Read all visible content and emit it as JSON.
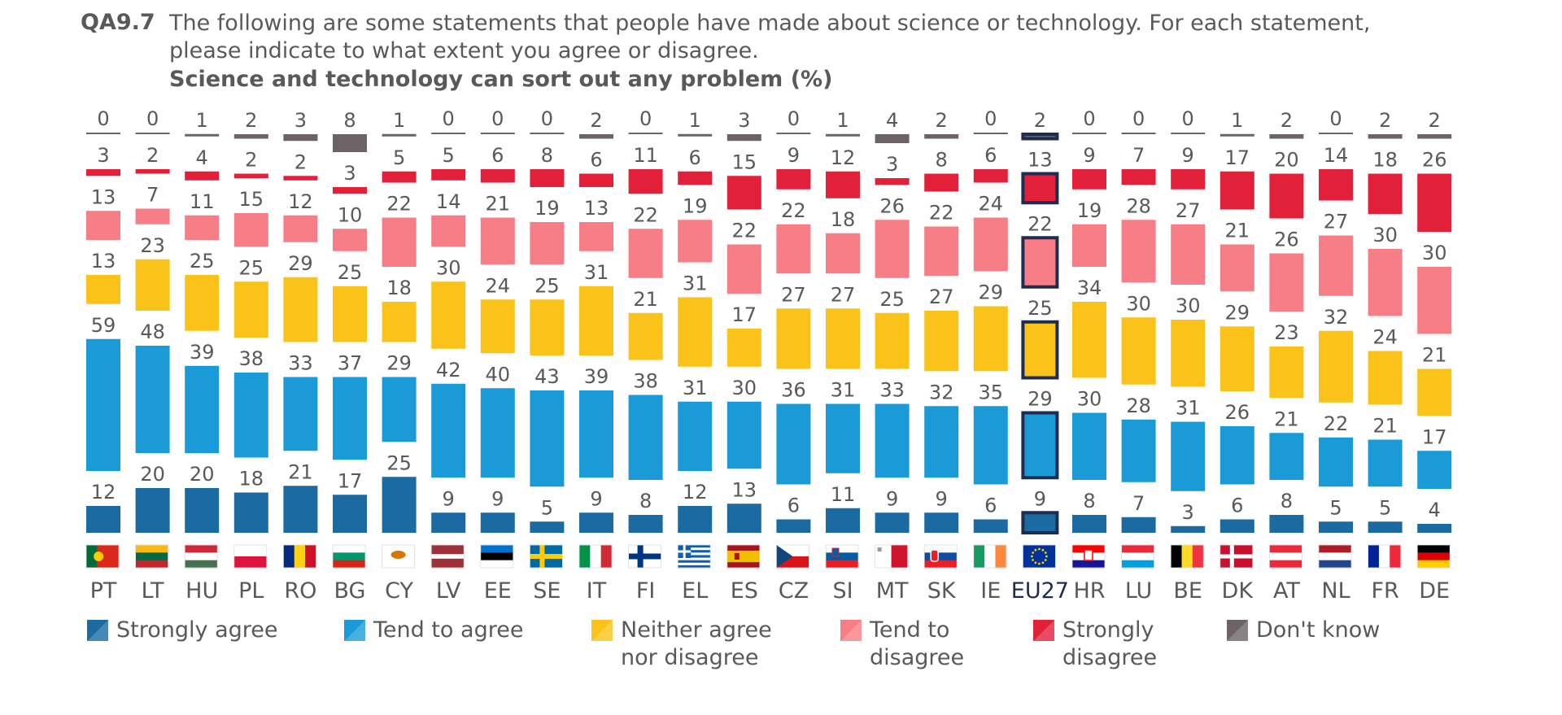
{
  "header": {
    "question_id": "QA9.7",
    "question_text": "The following are some statements that people have made about science or technology. For each statement, please indicate to what extent you agree or disagree.",
    "chart_title": "Science and technology can sort out any problem  (%)"
  },
  "colors": {
    "strongly_agree": "#1b6aa2",
    "tend_to_agree": "#1a9bd7",
    "neither": "#fbc21a",
    "tend_to_disagree": "#f77d86",
    "strongly_disagree": "#e3203a",
    "dont_know": "#6d6266",
    "eu27_outline": "#1f2c4e",
    "label_text": "#595959"
  },
  "legend": [
    {
      "key": "strongly_agree",
      "label": "Strongly agree",
      "swatch_color": "#1b6aa2"
    },
    {
      "key": "tend_to_agree",
      "label": "Tend to agree",
      "swatch_color": "#1a9bd7"
    },
    {
      "key": "neither",
      "label": "Neither agree\nnor disagree",
      "swatch_color": "#fbc21a"
    },
    {
      "key": "tend_to_disagree",
      "label": "Tend to\ndisagree",
      "swatch_color": "#f77d86"
    },
    {
      "key": "strongly_disagree",
      "label": "Strongly\ndisagree",
      "swatch_color": "#e3203a"
    },
    {
      "key": "dont_know",
      "label": "Don't know",
      "swatch_color": "#6d6266"
    }
  ],
  "chart_data": {
    "type": "bar",
    "title": "Science and technology can sort out any problem  (%)",
    "categories": [
      "PT",
      "LT",
      "HU",
      "PL",
      "RO",
      "BG",
      "CY",
      "LV",
      "EE",
      "SE",
      "IT",
      "FI",
      "EL",
      "ES",
      "CZ",
      "SI",
      "MT",
      "SK",
      "IE",
      "EU27",
      "HR",
      "LU",
      "BE",
      "DK",
      "AT",
      "NL",
      "FR",
      "DE"
    ],
    "highlight_category": "EU27",
    "series": [
      {
        "name": "Strongly agree",
        "values": [
          12,
          20,
          20,
          18,
          21,
          17,
          25,
          9,
          9,
          5,
          9,
          8,
          12,
          13,
          6,
          11,
          9,
          9,
          6,
          9,
          8,
          7,
          3,
          6,
          8,
          5,
          5,
          4
        ]
      },
      {
        "name": "Tend to agree",
        "values": [
          59,
          48,
          39,
          38,
          33,
          37,
          29,
          42,
          40,
          43,
          39,
          38,
          31,
          30,
          36,
          31,
          33,
          32,
          35,
          29,
          30,
          28,
          31,
          26,
          21,
          22,
          21,
          17
        ]
      },
      {
        "name": "Neither agree nor disagree",
        "values": [
          13,
          23,
          25,
          25,
          29,
          25,
          18,
          30,
          24,
          25,
          31,
          21,
          31,
          17,
          27,
          27,
          25,
          27,
          29,
          25,
          34,
          30,
          30,
          29,
          23,
          32,
          24,
          21
        ]
      },
      {
        "name": "Tend to disagree",
        "values": [
          13,
          7,
          11,
          15,
          12,
          10,
          22,
          14,
          21,
          19,
          13,
          22,
          19,
          22,
          22,
          18,
          26,
          22,
          24,
          22,
          19,
          28,
          27,
          21,
          26,
          27,
          30,
          30
        ]
      },
      {
        "name": "Strongly disagree",
        "values": [
          3,
          2,
          4,
          2,
          2,
          3,
          5,
          5,
          6,
          8,
          6,
          11,
          6,
          15,
          9,
          12,
          3,
          8,
          6,
          13,
          9,
          7,
          9,
          17,
          20,
          14,
          18,
          26
        ]
      },
      {
        "name": "Don't know",
        "values": [
          0,
          0,
          1,
          2,
          3,
          8,
          1,
          0,
          0,
          0,
          2,
          0,
          1,
          3,
          0,
          1,
          4,
          2,
          0,
          2,
          0,
          0,
          0,
          1,
          2,
          0,
          2,
          2
        ]
      }
    ]
  }
}
